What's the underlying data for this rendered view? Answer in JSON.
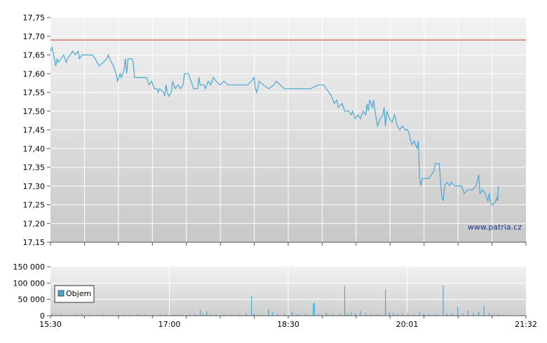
{
  "chart_data": [
    {
      "type": "line",
      "name": "price-panel",
      "ylim": [
        17.15,
        17.75
      ],
      "y_ticks": [
        "17,75",
        "17,70",
        "17,65",
        "17,60",
        "17,55",
        "17,50",
        "17,45",
        "17,40",
        "17,35",
        "17,30",
        "17,25",
        "17,20",
        "17,15"
      ],
      "x_range_minutes": [
        0,
        362
      ],
      "reference_line": 17.69,
      "colors": {
        "line": "#4aa8d4",
        "reference": "#c0392b"
      },
      "watermark": "www.patria.cz",
      "points": [
        [
          0,
          17.66
        ],
        [
          1,
          17.67
        ],
        [
          3,
          17.64
        ],
        [
          4,
          17.62
        ],
        [
          5,
          17.64
        ],
        [
          6,
          17.63
        ],
        [
          8,
          17.64
        ],
        [
          10,
          17.65
        ],
        [
          12,
          17.63
        ],
        [
          13,
          17.64
        ],
        [
          15,
          17.65
        ],
        [
          17,
          17.66
        ],
        [
          19,
          17.65
        ],
        [
          21,
          17.66
        ],
        [
          22,
          17.64
        ],
        [
          24,
          17.65
        ],
        [
          27,
          17.65
        ],
        [
          30,
          17.65
        ],
        [
          32,
          17.65
        ],
        [
          34,
          17.64
        ],
        [
          37,
          17.62
        ],
        [
          40,
          17.63
        ],
        [
          43,
          17.64
        ],
        [
          44,
          17.65
        ],
        [
          45,
          17.64
        ],
        [
          48,
          17.62
        ],
        [
          50,
          17.6
        ],
        [
          51,
          17.58
        ],
        [
          53,
          17.6
        ],
        [
          54,
          17.59
        ],
        [
          56,
          17.61
        ],
        [
          57,
          17.64
        ],
        [
          58,
          17.6
        ],
        [
          59,
          17.64
        ],
        [
          62,
          17.64
        ],
        [
          63,
          17.63
        ],
        [
          64,
          17.59
        ],
        [
          67,
          17.59
        ],
        [
          70,
          17.59
        ],
        [
          73,
          17.59
        ],
        [
          75,
          17.57
        ],
        [
          77,
          17.58
        ],
        [
          79,
          17.56
        ],
        [
          81,
          17.56
        ],
        [
          82,
          17.55
        ],
        [
          83,
          17.56
        ],
        [
          86,
          17.55
        ],
        [
          87,
          17.54
        ],
        [
          88,
          17.57
        ],
        [
          89,
          17.55
        ],
        [
          90,
          17.54
        ],
        [
          92,
          17.55
        ],
        [
          93,
          17.58
        ],
        [
          95,
          17.56
        ],
        [
          97,
          17.57
        ],
        [
          99,
          17.56
        ],
        [
          101,
          17.57
        ],
        [
          102,
          17.6
        ],
        [
          105,
          17.6
        ],
        [
          107,
          17.58
        ],
        [
          109,
          17.56
        ],
        [
          112,
          17.56
        ],
        [
          113,
          17.59
        ],
        [
          114,
          17.57
        ],
        [
          117,
          17.57
        ],
        [
          118,
          17.56
        ],
        [
          120,
          17.58
        ],
        [
          122,
          17.57
        ],
        [
          124,
          17.59
        ],
        [
          126,
          17.58
        ],
        [
          129,
          17.57
        ],
        [
          132,
          17.58
        ],
        [
          135,
          17.57
        ],
        [
          140,
          17.57
        ],
        [
          145,
          17.57
        ],
        [
          150,
          17.57
        ],
        [
          153,
          17.58
        ],
        [
          155,
          17.59
        ],
        [
          156,
          17.56
        ],
        [
          157,
          17.55
        ],
        [
          159,
          17.58
        ],
        [
          162,
          17.57
        ],
        [
          166,
          17.56
        ],
        [
          170,
          17.57
        ],
        [
          172,
          17.58
        ],
        [
          175,
          17.57
        ],
        [
          178,
          17.56
        ],
        [
          182,
          17.56
        ],
        [
          188,
          17.56
        ],
        [
          193,
          17.56
        ],
        [
          198,
          17.56
        ],
        [
          204,
          17.57
        ],
        [
          208,
          17.57
        ],
        [
          210,
          17.56
        ],
        [
          212,
          17.55
        ],
        [
          214,
          17.54
        ],
        [
          216,
          17.52
        ],
        [
          218,
          17.53
        ],
        [
          219,
          17.51
        ],
        [
          222,
          17.52
        ],
        [
          224,
          17.5
        ],
        [
          227,
          17.5
        ],
        [
          229,
          17.49
        ],
        [
          230,
          17.5
        ],
        [
          232,
          17.48
        ],
        [
          234,
          17.49
        ],
        [
          236,
          17.48
        ],
        [
          238,
          17.5
        ],
        [
          240,
          17.49
        ],
        [
          241,
          17.52
        ],
        [
          242,
          17.5
        ],
        [
          243,
          17.53
        ],
        [
          245,
          17.51
        ],
        [
          246,
          17.53
        ],
        [
          247,
          17.5
        ],
        [
          248,
          17.48
        ],
        [
          249,
          17.46
        ],
        [
          251,
          17.48
        ],
        [
          253,
          17.49
        ],
        [
          254,
          17.51
        ],
        [
          255,
          17.46
        ],
        [
          256,
          17.5
        ],
        [
          258,
          17.48
        ],
        [
          260,
          17.47
        ],
        [
          262,
          17.49
        ],
        [
          264,
          17.46
        ],
        [
          266,
          17.45
        ],
        [
          268,
          17.46
        ],
        [
          270,
          17.45
        ],
        [
          272,
          17.45
        ],
        [
          273,
          17.44
        ],
        [
          275,
          17.41
        ],
        [
          277,
          17.42
        ],
        [
          279,
          17.4
        ],
        [
          280,
          17.42
        ],
        [
          281,
          17.32
        ],
        [
          282,
          17.3
        ],
        [
          283,
          17.32
        ],
        [
          285,
          17.32
        ],
        [
          288,
          17.32
        ],
        [
          290,
          17.33
        ],
        [
          292,
          17.34
        ],
        [
          293,
          17.36
        ],
        [
          296,
          17.36
        ],
        [
          297,
          17.31
        ],
        [
          298,
          17.27
        ],
        [
          299,
          17.26
        ],
        [
          300,
          17.3
        ],
        [
          302,
          17.31
        ],
        [
          304,
          17.3
        ],
        [
          305,
          17.31
        ],
        [
          308,
          17.3
        ],
        [
          311,
          17.3
        ],
        [
          313,
          17.3
        ],
        [
          315,
          17.28
        ],
        [
          318,
          17.29
        ],
        [
          321,
          17.29
        ],
        [
          324,
          17.3
        ],
        [
          326,
          17.33
        ],
        [
          327,
          17.28
        ],
        [
          329,
          17.29
        ],
        [
          331,
          17.28
        ],
        [
          333,
          17.26
        ],
        [
          334,
          17.28
        ],
        [
          335,
          17.26
        ],
        [
          336,
          17.25
        ],
        [
          337,
          17.25
        ],
        [
          339,
          17.26
        ],
        [
          340,
          17.27
        ],
        [
          340.5,
          17.26
        ],
        [
          341,
          17.3
        ]
      ]
    },
    {
      "type": "bar",
      "name": "volume-panel",
      "ylim": [
        0,
        150000
      ],
      "y_ticks": [
        "150 000",
        "100 000",
        "50 000",
        "0"
      ],
      "x_ticks": [
        "15:30",
        "17:00",
        "18:30",
        "20:01",
        "21:32"
      ],
      "legend": "Objem",
      "colors": {
        "bar": "#4aa8d4"
      },
      "bars": [
        [
          1,
          6000
        ],
        [
          3,
          2500
        ],
        [
          8,
          5000
        ],
        [
          12,
          3000
        ],
        [
          20,
          4000
        ],
        [
          24,
          6500
        ],
        [
          30,
          3000
        ],
        [
          36,
          2500
        ],
        [
          40,
          4000
        ],
        [
          45,
          2000
        ],
        [
          52,
          3500
        ],
        [
          56,
          2500
        ],
        [
          60,
          3000
        ],
        [
          66,
          4500
        ],
        [
          72,
          2500
        ],
        [
          78,
          3000
        ],
        [
          84,
          4500
        ],
        [
          88,
          4000
        ],
        [
          94,
          3500
        ],
        [
          100,
          3000
        ],
        [
          106,
          3500
        ],
        [
          110,
          5000
        ],
        [
          114,
          18000
        ],
        [
          116,
          7000
        ],
        [
          119,
          14000
        ],
        [
          122,
          5000
        ],
        [
          126,
          3500
        ],
        [
          132,
          4000
        ],
        [
          138,
          3000
        ],
        [
          144,
          4000
        ],
        [
          149,
          8000
        ],
        [
          153,
          60000
        ],
        [
          155,
          6000
        ],
        [
          160,
          3500
        ],
        [
          166,
          20000
        ],
        [
          169,
          12000
        ],
        [
          173,
          5000
        ],
        [
          178,
          4500
        ],
        [
          184,
          12000
        ],
        [
          188,
          4000
        ],
        [
          194,
          6000
        ],
        [
          200,
          38000
        ],
        [
          201,
          40000
        ],
        [
          204,
          6000
        ],
        [
          210,
          9000
        ],
        [
          215,
          4500
        ],
        [
          220,
          5000
        ],
        [
          224,
          91000
        ],
        [
          226,
          7000
        ],
        [
          229,
          12000
        ],
        [
          232,
          8000
        ],
        [
          236,
          14000
        ],
        [
          240,
          9000
        ],
        [
          244,
          5500
        ],
        [
          249,
          5000
        ],
        [
          255,
          80000
        ],
        [
          258,
          11000
        ],
        [
          261,
          9000
        ],
        [
          264,
          4500
        ],
        [
          268,
          6500
        ],
        [
          272,
          8000
        ],
        [
          277,
          5000
        ],
        [
          281,
          12000
        ],
        [
          284,
          6000
        ],
        [
          288,
          5000
        ],
        [
          294,
          5000
        ],
        [
          299,
          93000
        ],
        [
          302,
          6000
        ],
        [
          306,
          7000
        ],
        [
          310,
          26000
        ],
        [
          314,
          6000
        ],
        [
          318,
          17000
        ],
        [
          322,
          8000
        ],
        [
          326,
          12000
        ],
        [
          330,
          30000
        ],
        [
          334,
          9000
        ],
        [
          337,
          4000
        ],
        [
          341,
          6000
        ]
      ]
    }
  ]
}
